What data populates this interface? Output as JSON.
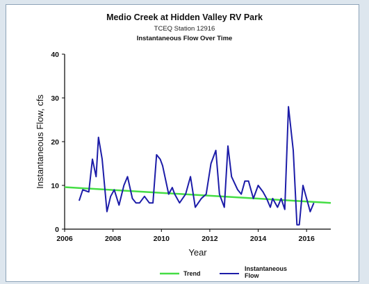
{
  "chart_data": {
    "type": "line",
    "title": "Medio Creek at Hidden Valley RV Park",
    "subtitle": "TCEQ Station 12916",
    "subtitle2": "Instantaneous Flow Over Time",
    "xlabel": "Year",
    "ylabel": "Instantaneous Flow, cfs",
    "xlim": [
      2006,
      2017
    ],
    "ylim": [
      0,
      40
    ],
    "xticks": [
      2006,
      2008,
      2010,
      2012,
      2014,
      2016
    ],
    "yticks": [
      0,
      10,
      20,
      30,
      40
    ],
    "xtick_labels": [
      "2006",
      "2008",
      "2010",
      "2012",
      "2014",
      "2016"
    ],
    "ytick_labels": [
      "0",
      "10",
      "20",
      "30",
      "40"
    ],
    "grid": false,
    "legend_position": "bottom",
    "series": [
      {
        "name": "Trend",
        "color": "#44dd44",
        "x": [
          2006.0,
          2017.0
        ],
        "y": [
          9.6,
          6.0
        ]
      },
      {
        "name": "Instantaneous Flow",
        "color": "#1c1ca8",
        "x": [
          2006.6,
          2006.75,
          2007.0,
          2007.15,
          2007.3,
          2007.4,
          2007.55,
          2007.75,
          2007.9,
          2008.05,
          2008.25,
          2008.45,
          2008.6,
          2008.8,
          2008.95,
          2009.1,
          2009.3,
          2009.5,
          2009.65,
          2009.8,
          2009.95,
          2010.05,
          2010.3,
          2010.45,
          2010.55,
          2010.75,
          2011.0,
          2011.2,
          2011.4,
          2011.65,
          2011.85,
          2012.05,
          2012.25,
          2012.4,
          2012.6,
          2012.75,
          2012.9,
          2013.15,
          2013.3,
          2013.45,
          2013.6,
          2013.8,
          2014.0,
          2014.2,
          2014.35,
          2014.5,
          2014.6,
          2014.8,
          2014.95,
          2015.1,
          2015.25,
          2015.45,
          2015.6,
          2015.7,
          2015.85,
          2016.0,
          2016.15,
          2016.3
        ],
        "y": [
          6.5,
          9.0,
          8.5,
          16.0,
          12.0,
          21.0,
          16.0,
          4.0,
          7.5,
          9.0,
          5.5,
          10.0,
          12.0,
          7.0,
          6.0,
          6.0,
          7.5,
          6.0,
          6.0,
          17.0,
          16.0,
          14.5,
          8.0,
          9.5,
          8.0,
          6.0,
          8.0,
          12.0,
          5.0,
          7.0,
          8.0,
          15.0,
          18.0,
          8.0,
          5.0,
          19.0,
          12.0,
          9.0,
          8.0,
          11.0,
          11.0,
          7.0,
          10.0,
          8.5,
          7.0,
          5.0,
          7.0,
          5.0,
          7.0,
          4.5,
          28.0,
          18.0,
          1.0,
          1.0,
          10.0,
          7.0,
          4.0,
          6.0
        ]
      }
    ]
  }
}
